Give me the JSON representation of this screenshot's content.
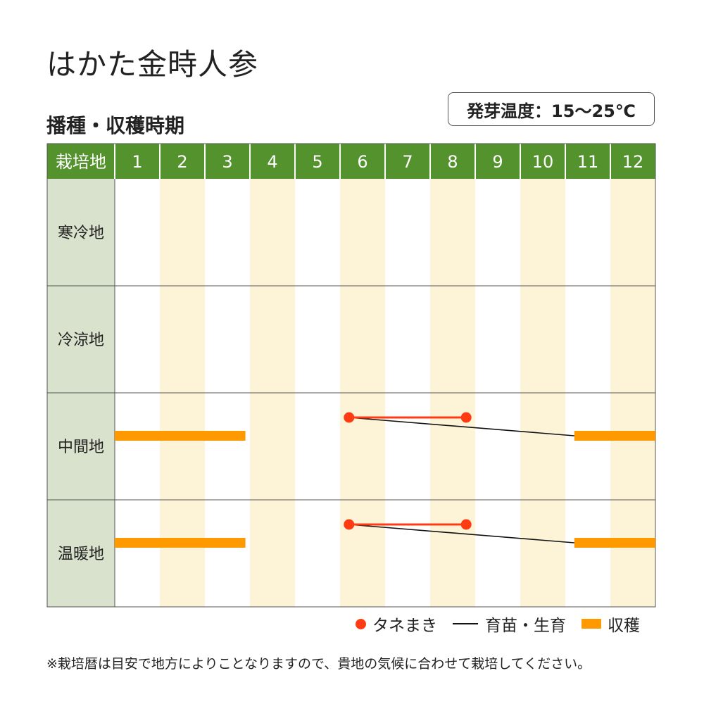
{
  "title": "はかた金時人参",
  "subtitle": "播種・収穫時期",
  "germination_badge": "発芽温度：15～25℃",
  "note": "※栽培暦は目安で地方によりことなりますので、貴地の気候に合わせて栽培してください。",
  "colors": {
    "header_green": "#54922e",
    "row_label_bg": "#d9e2cc",
    "stripe": "#fdf4d8",
    "sowing_red": "#ff3b14",
    "growing_black": "#111111",
    "harvest_orange": "#ff9900"
  },
  "chart_data": {
    "type": "gantt",
    "header_label": "栽培地",
    "months": [
      "1",
      "2",
      "3",
      "4",
      "5",
      "6",
      "7",
      "8",
      "9",
      "10",
      "11",
      "12"
    ],
    "regions": [
      {
        "name": "寒冷地",
        "sowing": null,
        "growing": null,
        "harvest": []
      },
      {
        "name": "冷涼地",
        "sowing": null,
        "growing": null,
        "harvest": []
      },
      {
        "name": "中間地",
        "sowing": [
          6.2,
          8.8
        ],
        "growing": [
          6.2,
          11.2
        ],
        "harvest": [
          [
            1.0,
            3.9
          ],
          [
            11.2,
            13.0
          ]
        ]
      },
      {
        "name": "温暖地",
        "sowing": [
          6.2,
          8.8
        ],
        "growing": [
          6.2,
          11.2
        ],
        "harvest": [
          [
            1.0,
            3.9
          ],
          [
            11.2,
            13.0
          ]
        ]
      }
    ],
    "legend": [
      {
        "key": "sowing",
        "label": "タネまき"
      },
      {
        "key": "growing",
        "label": "育苗・生育"
      },
      {
        "key": "harvest",
        "label": "収穫"
      }
    ]
  }
}
